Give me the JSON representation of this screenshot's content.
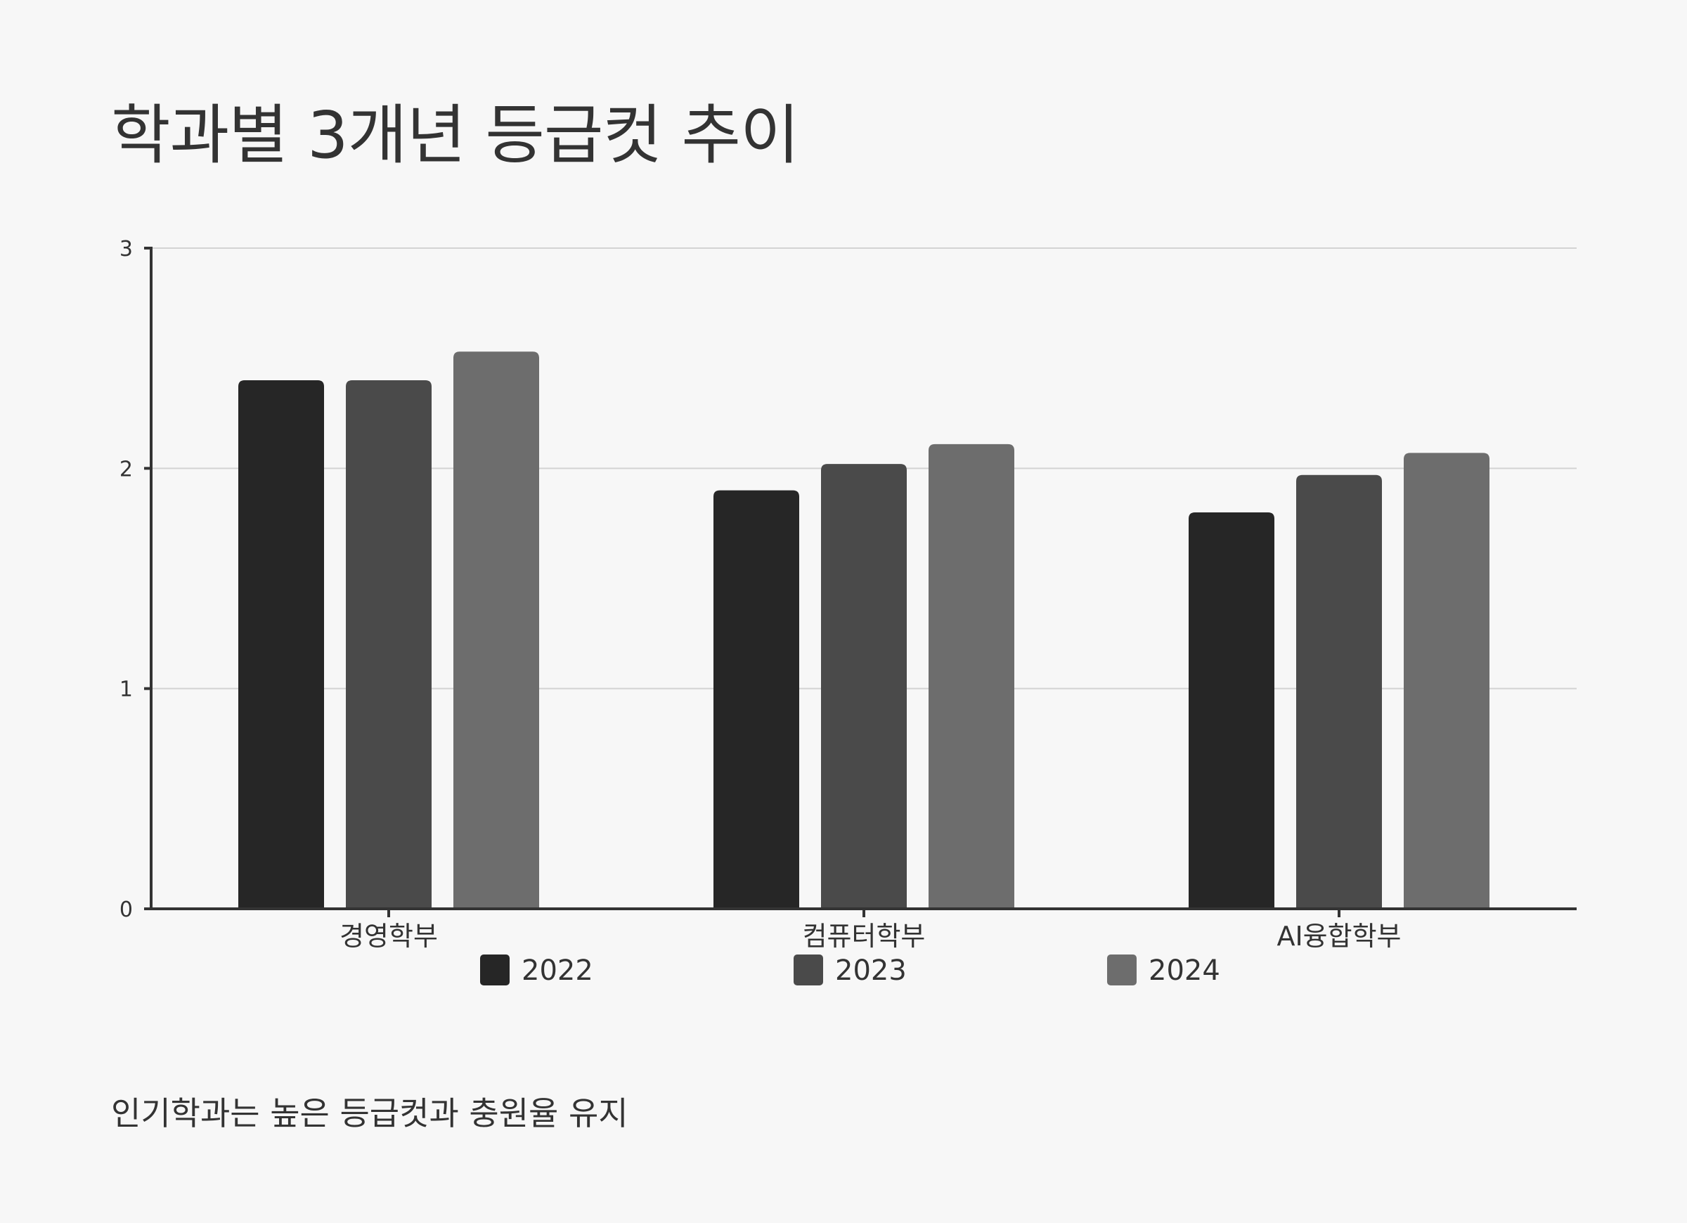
{
  "chart_data": {
    "type": "bar",
    "title": "학과별 3개년 등급컷 추이",
    "caption": "인기학과는 높은 등급컷과 충원율 유지",
    "categories": [
      "경영학부",
      "컴퓨터학부",
      "AI융합학부"
    ],
    "series": [
      {
        "name": "2022",
        "values": [
          2.4,
          1.9,
          1.8
        ],
        "color": "#262626"
      },
      {
        "name": "2023",
        "values": [
          2.4,
          2.02,
          1.97
        ],
        "color": "#4a4a4a"
      },
      {
        "name": "2024",
        "values": [
          2.53,
          2.11,
          2.07
        ],
        "color": "#6d6d6d"
      }
    ],
    "yticks": [
      "0",
      "1",
      "2",
      "3"
    ],
    "ylim": [
      0,
      3
    ],
    "grid": true,
    "legend_position": "bottom"
  }
}
